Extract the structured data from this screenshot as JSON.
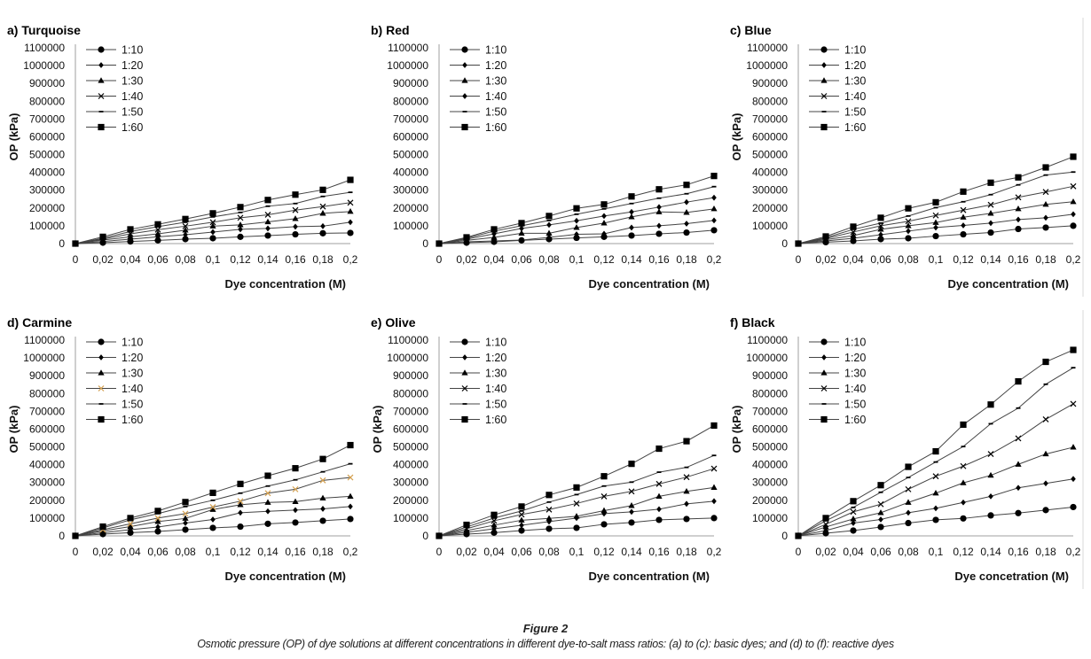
{
  "figure": {
    "title": "Figure 2",
    "caption": "Osmotic pressure (OP) of dye solutions at different concentrations in different dye-to-salt mass ratios: (a) to (c): basic dyes; and (d) to (f): reactive dyes"
  },
  "chart_data": [
    {
      "type": "line",
      "title": "a) Turquoise",
      "xlabel": "Dye concentration (M)",
      "ylabel": "OP (kPa)",
      "x": [
        0,
        0.02,
        0.04,
        0.06,
        0.08,
        0.1,
        0.12,
        0.14,
        0.16,
        0.18,
        0.2
      ],
      "x_tick_labels": [
        "0",
        "0,02",
        "0,04",
        "0,06",
        "0,08",
        "0,1",
        "0,12",
        "0,14",
        "0,16",
        "0,18",
        "0,2"
      ],
      "ylim": [
        0,
        1100000
      ],
      "y_ticks": [
        0,
        100000,
        200000,
        300000,
        400000,
        500000,
        600000,
        700000,
        800000,
        900000,
        1000000,
        1100000
      ],
      "grid": false,
      "legend_position": "top-left",
      "series": [
        {
          "name": "1:10",
          "marker": "circle",
          "values": [
            0,
            5000,
            12000,
            18000,
            25000,
            30000,
            38000,
            45000,
            52000,
            58000,
            60000
          ]
        },
        {
          "name": "1:20",
          "marker": "diamond",
          "values": [
            0,
            12000,
            25000,
            38000,
            50000,
            65000,
            80000,
            85000,
            95000,
            98000,
            120000
          ]
        },
        {
          "name": "1:30",
          "marker": "triangle",
          "values": [
            0,
            20000,
            38000,
            55000,
            75000,
            98000,
            105000,
            122000,
            140000,
            170000,
            180000
          ]
        },
        {
          "name": "1:40",
          "marker": "x",
          "values": [
            0,
            25000,
            55000,
            78000,
            98000,
            120000,
            145000,
            162000,
            188000,
            208000,
            230000
          ]
        },
        {
          "name": "1:50",
          "marker": "dash",
          "values": [
            0,
            30000,
            68000,
            95000,
            120000,
            150000,
            175000,
            210000,
            225000,
            265000,
            288000
          ]
        },
        {
          "name": "1:60",
          "marker": "square",
          "values": [
            0,
            38000,
            80000,
            108000,
            138000,
            170000,
            205000,
            245000,
            275000,
            302000,
            358000
          ]
        }
      ]
    },
    {
      "type": "line",
      "title": "b) Red",
      "xlabel": "Dye concentration (M)",
      "ylabel": "",
      "x": [
        0,
        0.02,
        0.04,
        0.06,
        0.08,
        0.1,
        0.12,
        0.14,
        0.16,
        0.18,
        0.2
      ],
      "x_tick_labels": [
        "0",
        "0,02",
        "0,04",
        "0,06",
        "0,08",
        "0,1",
        "0,12",
        "0,14",
        "0,16",
        "0,18",
        "0,2"
      ],
      "ylim": [
        0,
        1100000
      ],
      "y_ticks": [
        0,
        100000,
        200000,
        300000,
        400000,
        500000,
        600000,
        700000,
        800000,
        900000,
        1000000,
        1100000
      ],
      "grid": false,
      "legend_position": "top-left",
      "series": [
        {
          "name": "1:10",
          "marker": "circle",
          "values": [
            0,
            5000,
            10000,
            18000,
            25000,
            32000,
            38000,
            45000,
            55000,
            62000,
            75000
          ]
        },
        {
          "name": "1:20",
          "marker": "diamond",
          "values": [
            0,
            10000,
            15000,
            20000,
            35000,
            52000,
            55000,
            90000,
            100000,
            112000,
            130000
          ]
        },
        {
          "name": "1:30",
          "marker": "triangle",
          "values": [
            0,
            18000,
            35000,
            58000,
            58000,
            90000,
            115000,
            150000,
            178000,
            175000,
            195000
          ]
        },
        {
          "name": "1:40",
          "marker": "diamond",
          "values": [
            0,
            25000,
            55000,
            85000,
            105000,
            128000,
            155000,
            178000,
            205000,
            233000,
            258000
          ]
        },
        {
          "name": "1:50",
          "marker": "dash",
          "values": [
            0,
            30000,
            70000,
            100000,
            130000,
            165000,
            195000,
            225000,
            255000,
            280000,
            320000
          ]
        },
        {
          "name": "1:60",
          "marker": "square",
          "values": [
            0,
            35000,
            80000,
            115000,
            155000,
            198000,
            220000,
            265000,
            305000,
            330000,
            380000
          ]
        }
      ]
    },
    {
      "type": "line",
      "title": "c) Blue",
      "xlabel": "Dye concentration (M)",
      "ylabel": "OP (kPa)",
      "x": [
        0,
        0.02,
        0.04,
        0.06,
        0.08,
        0.1,
        0.12,
        0.14,
        0.16,
        0.18,
        0.2
      ],
      "x_tick_labels": [
        "0",
        "0,02",
        "0,04",
        "0,06",
        "0,08",
        "0,1",
        "0,12",
        "0,14",
        "0,16",
        "0,18",
        "0,2"
      ],
      "ylim": [
        0,
        1100000
      ],
      "y_ticks": [
        0,
        100000,
        200000,
        300000,
        400000,
        500000,
        600000,
        700000,
        800000,
        900000,
        1000000,
        1100000
      ],
      "grid": false,
      "legend_position": "top-left",
      "series": [
        {
          "name": "1:10",
          "marker": "circle",
          "values": [
            0,
            8000,
            15000,
            25000,
            30000,
            42000,
            52000,
            62000,
            82000,
            90000,
            100000
          ]
        },
        {
          "name": "1:20",
          "marker": "diamond",
          "values": [
            0,
            15000,
            30000,
            50000,
            70000,
            90000,
            102000,
            115000,
            135000,
            145000,
            165000
          ]
        },
        {
          "name": "1:30",
          "marker": "triangle",
          "values": [
            0,
            22000,
            45000,
            80000,
            100000,
            118000,
            148000,
            170000,
            195000,
            220000,
            235000
          ]
        },
        {
          "name": "1:40",
          "marker": "x",
          "values": [
            0,
            28000,
            65000,
            100000,
            125000,
            158000,
            188000,
            218000,
            260000,
            290000,
            322000
          ]
        },
        {
          "name": "1:50",
          "marker": "dash",
          "values": [
            0,
            33000,
            80000,
            115000,
            155000,
            202000,
            235000,
            275000,
            330000,
            385000,
            402000
          ]
        },
        {
          "name": "1:60",
          "marker": "square",
          "values": [
            0,
            40000,
            95000,
            145000,
            198000,
            232000,
            292000,
            342000,
            372000,
            428000,
            488000
          ]
        }
      ]
    },
    {
      "type": "line",
      "title": "d) Carmine",
      "xlabel": "Dye concentration (M)",
      "ylabel": "OP (kPa)",
      "x": [
        0,
        0.02,
        0.04,
        0.06,
        0.08,
        0.1,
        0.12,
        0.14,
        0.16,
        0.18,
        0.2
      ],
      "x_tick_labels": [
        "0",
        "0,02",
        "0,04",
        "0,06",
        "0,08",
        "0,1",
        "0,12",
        "0,14",
        "0,16",
        "0,18",
        "0,2"
      ],
      "ylim": [
        0,
        1100000
      ],
      "y_ticks": [
        0,
        100000,
        200000,
        300000,
        400000,
        500000,
        600000,
        700000,
        800000,
        900000,
        1000000,
        1100000
      ],
      "grid": false,
      "legend_position": "top-left",
      "series": [
        {
          "name": "1:10",
          "marker": "circle",
          "values": [
            0,
            10000,
            18000,
            25000,
            35000,
            45000,
            52000,
            68000,
            75000,
            85000,
            95000
          ]
        },
        {
          "name": "1:20",
          "marker": "diamond",
          "values": [
            0,
            18000,
            35000,
            50000,
            72000,
            92000,
            130000,
            138000,
            145000,
            152000,
            165000
          ]
        },
        {
          "name": "1:30",
          "marker": "triangle",
          "values": [
            0,
            28000,
            52000,
            80000,
            98000,
            148000,
            175000,
            188000,
            192000,
            212000,
            222000
          ]
        },
        {
          "name": "1:40",
          "marker": "x",
          "color": "#d4a050",
          "values": [
            0,
            35000,
            68000,
            100000,
            125000,
            162000,
            195000,
            240000,
            262000,
            312000,
            328000
          ]
        },
        {
          "name": "1:50",
          "marker": "dash",
          "values": [
            0,
            45000,
            90000,
            125000,
            165000,
            200000,
            240000,
            280000,
            315000,
            360000,
            405000
          ]
        },
        {
          "name": "1:60",
          "marker": "square",
          "values": [
            0,
            52000,
            100000,
            140000,
            190000,
            242000,
            292000,
            338000,
            380000,
            432000,
            510000
          ]
        }
      ]
    },
    {
      "type": "line",
      "title": "e) Olive",
      "xlabel": "Dye concentration (M)",
      "ylabel": "OP (kPa)",
      "x": [
        0,
        0.02,
        0.04,
        0.06,
        0.08,
        0.1,
        0.12,
        0.14,
        0.16,
        0.18,
        0.2
      ],
      "x_tick_labels": [
        "0",
        "0,02",
        "0,04",
        "0,06",
        "0,08",
        "0,1",
        "0,12",
        "0,14",
        "0,16",
        "0,18",
        "0,2"
      ],
      "ylim": [
        0,
        1100000
      ],
      "y_ticks": [
        0,
        100000,
        200000,
        300000,
        400000,
        500000,
        600000,
        700000,
        800000,
        900000,
        1000000,
        1100000
      ],
      "grid": false,
      "legend_position": "top-left",
      "series": [
        {
          "name": "1:10",
          "marker": "circle",
          "values": [
            0,
            10000,
            18000,
            30000,
            40000,
            45000,
            65000,
            75000,
            90000,
            95000,
            100000
          ]
        },
        {
          "name": "1:20",
          "marker": "diamond",
          "values": [
            0,
            20000,
            40000,
            60000,
            80000,
            100000,
            125000,
            135000,
            150000,
            180000,
            195000
          ]
        },
        {
          "name": "1:30",
          "marker": "triangle",
          "values": [
            0,
            30000,
            60000,
            88000,
            98000,
            110000,
            142000,
            170000,
            222000,
            250000,
            272000
          ]
        },
        {
          "name": "1:40",
          "marker": "x",
          "values": [
            0,
            40000,
            85000,
            120000,
            148000,
            182000,
            222000,
            250000,
            292000,
            330000,
            378000
          ]
        },
        {
          "name": "1:50",
          "marker": "dash",
          "values": [
            0,
            50000,
            100000,
            140000,
            190000,
            232000,
            280000,
            302000,
            358000,
            385000,
            452000
          ]
        },
        {
          "name": "1:60",
          "marker": "square",
          "values": [
            0,
            62000,
            118000,
            165000,
            230000,
            272000,
            335000,
            405000,
            490000,
            532000,
            620000
          ]
        }
      ]
    },
    {
      "type": "line",
      "title": "f) Black",
      "xlabel": "Dye concetration (M)",
      "ylabel": "OP (kPa)",
      "x": [
        0,
        0.02,
        0.04,
        0.06,
        0.08,
        0.1,
        0.12,
        0.14,
        0.16,
        0.18,
        0.2
      ],
      "x_tick_labels": [
        "0",
        "0,02",
        "0,04",
        "0,06",
        "0,08",
        "0,1",
        "0,12",
        "0,14",
        "0,16",
        "0,18",
        "0,2"
      ],
      "ylim": [
        0,
        1100000
      ],
      "y_ticks": [
        0,
        100000,
        200000,
        300000,
        400000,
        500000,
        600000,
        700000,
        800000,
        900000,
        1000000,
        1100000
      ],
      "grid": false,
      "legend_position": "top-left",
      "series": [
        {
          "name": "1:10",
          "marker": "circle",
          "values": [
            0,
            15000,
            30000,
            50000,
            72000,
            90000,
            98000,
            115000,
            128000,
            145000,
            162000
          ]
        },
        {
          "name": "1:20",
          "marker": "diamond",
          "values": [
            0,
            30000,
            72000,
            92000,
            130000,
            155000,
            188000,
            222000,
            270000,
            295000,
            320000
          ]
        },
        {
          "name": "1:30",
          "marker": "triangle",
          "values": [
            0,
            50000,
            95000,
            130000,
            188000,
            240000,
            298000,
            340000,
            402000,
            460000,
            498000
          ]
        },
        {
          "name": "1:40",
          "marker": "x",
          "values": [
            0,
            65000,
            135000,
            178000,
            262000,
            335000,
            392000,
            460000,
            548000,
            655000,
            742000
          ]
        },
        {
          "name": "1:50",
          "marker": "dash",
          "values": [
            0,
            85000,
            160000,
            245000,
            328000,
            415000,
            502000,
            630000,
            718000,
            852000,
            945000
          ]
        },
        {
          "name": "1:60",
          "marker": "square",
          "values": [
            0,
            100000,
            195000,
            285000,
            388000,
            475000,
            625000,
            738000,
            868000,
            978000,
            1045000
          ]
        }
      ]
    }
  ]
}
